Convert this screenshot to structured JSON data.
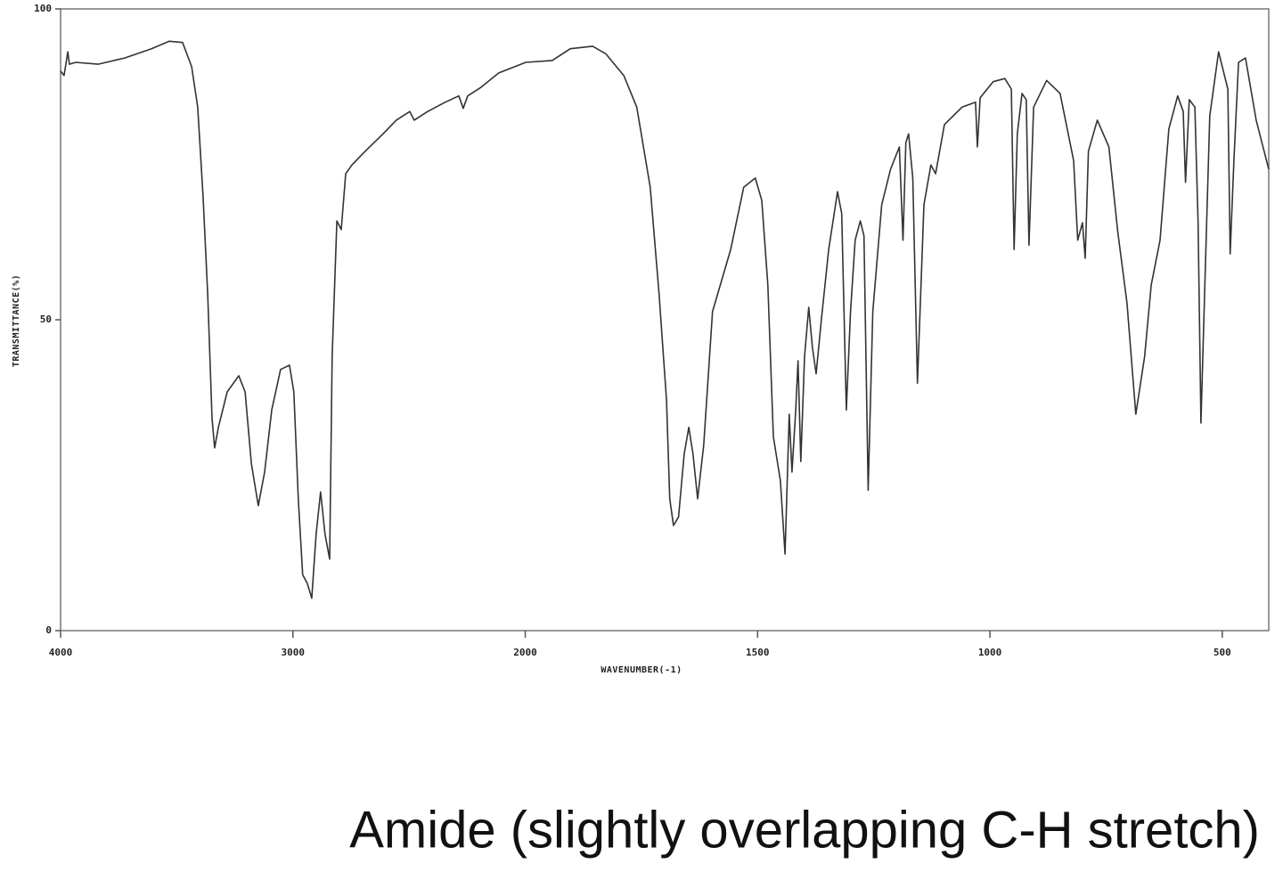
{
  "chart_data": {
    "type": "line",
    "title": "Amide (slightly overlapping C-H stretch)",
    "x_label": "WAVENUMBER(-1)",
    "y_label": "TRANSMITTANCE(%)",
    "xlim": [
      4000,
      400
    ],
    "xticks": [
      4000,
      3000,
      2000,
      1500,
      1000,
      500
    ],
    "x_expand_below": 2000,
    "x_expand_factor": 2,
    "ylim": [
      0,
      100
    ],
    "yticks": [
      0,
      50,
      100
    ],
    "color": "#333333",
    "x": [
      4000,
      3985,
      3969,
      3962,
      3935,
      3839,
      3724,
      3609,
      3532,
      3475,
      3436,
      3410,
      3387,
      3367,
      3348,
      3337,
      3321,
      3283,
      3233,
      3206,
      3179,
      3149,
      3122,
      3091,
      3053,
      3015,
      2996,
      2977,
      2958,
      2938,
      2919,
      2900,
      2881,
      2862,
      2842,
      2831,
      2811,
      2792,
      2773,
      2746,
      2689,
      2612,
      2555,
      2497,
      2478,
      2420,
      2344,
      2286,
      2267,
      2248,
      2190,
      2114,
      1999,
      1942,
      1903,
      1855,
      1827,
      1788,
      1760,
      1731,
      1712,
      1696,
      1689,
      1681,
      1670,
      1658,
      1648,
      1639,
      1629,
      1616,
      1597,
      1558,
      1530,
      1505,
      1491,
      1478,
      1466,
      1451,
      1441,
      1432,
      1426,
      1418,
      1413,
      1407,
      1399,
      1390,
      1382,
      1374,
      1363,
      1347,
      1328,
      1319,
      1309,
      1300,
      1290,
      1279,
      1271,
      1262,
      1252,
      1233,
      1214,
      1195,
      1187,
      1181,
      1175,
      1166,
      1156,
      1142,
      1127,
      1117,
      1098,
      1060,
      1031,
      1027,
      1021,
      993,
      968,
      954,
      948,
      941,
      931,
      922,
      916,
      906,
      878,
      849,
      820,
      811,
      801,
      795,
      788,
      769,
      744,
      725,
      705,
      686,
      667,
      653,
      634,
      615,
      596,
      584,
      579,
      571,
      559,
      552,
      546,
      538,
      527,
      508,
      488,
      483,
      475,
      465,
      450,
      427,
      400
    ],
    "values": [
      90.0,
      89.3,
      93.1,
      91.1,
      91.4,
      91.1,
      92.1,
      93.6,
      94.8,
      94.6,
      90.7,
      84.2,
      69.9,
      54.2,
      34.1,
      29.4,
      32.7,
      38.4,
      41.0,
      38.4,
      26.9,
      20.1,
      25.5,
      35.5,
      42.0,
      42.7,
      38.4,
      21.2,
      9.0,
      7.6,
      5.2,
      15.5,
      22.3,
      15.5,
      11.5,
      44.1,
      65.9,
      64.5,
      73.5,
      74.9,
      77.1,
      79.9,
      82.1,
      83.5,
      82.1,
      83.5,
      85.0,
      86.0,
      84.0,
      86.0,
      87.4,
      89.7,
      91.4,
      91.7,
      93.6,
      94.0,
      92.8,
      89.3,
      84.2,
      71.3,
      54.2,
      37.0,
      21.2,
      16.9,
      18.3,
      28.4,
      32.7,
      28.4,
      21.2,
      29.8,
      51.3,
      61.3,
      71.3,
      72.8,
      69.2,
      55.6,
      31.2,
      24.1,
      12.3,
      34.8,
      25.5,
      35.5,
      43.4,
      27.2,
      44.1,
      52.0,
      45.6,
      41.3,
      49.9,
      61.3,
      70.6,
      67.1,
      35.5,
      51.3,
      62.8,
      65.9,
      63.5,
      22.6,
      51.3,
      68.5,
      74.2,
      77.8,
      62.8,
      78.5,
      79.9,
      72.8,
      39.8,
      68.5,
      74.9,
      73.5,
      81.4,
      84.2,
      85.0,
      77.8,
      85.7,
      88.3,
      88.8,
      87.1,
      61.3,
      79.9,
      86.4,
      85.4,
      62.0,
      84.2,
      88.5,
      86.4,
      75.6,
      62.8,
      65.6,
      59.9,
      77.1,
      82.1,
      77.8,
      64.2,
      52.7,
      34.8,
      44.1,
      55.6,
      62.8,
      80.7,
      86.0,
      83.5,
      72.1,
      85.4,
      84.2,
      65.6,
      33.4,
      54.2,
      82.8,
      93.1,
      87.1,
      60.6,
      75.6,
      91.4,
      92.1,
      82.1,
      74.2
    ]
  }
}
